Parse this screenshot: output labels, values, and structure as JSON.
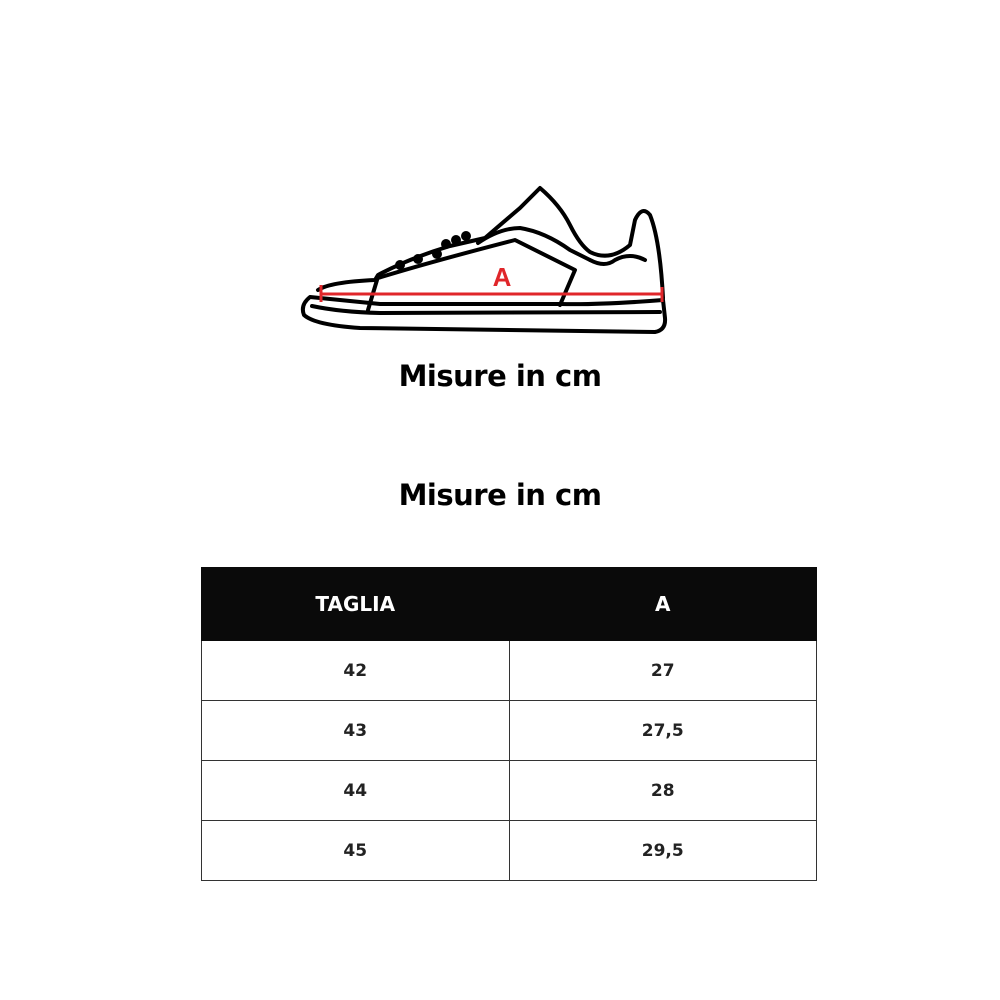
{
  "illustration": {
    "label": "A",
    "measure_color": "#e0262a"
  },
  "titles": {
    "top": "Misure in cm",
    "table": "Misure in cm"
  },
  "table": {
    "headers": [
      "TAGLIA",
      "A"
    ],
    "rows": [
      [
        "42",
        "27"
      ],
      [
        "43",
        "27,5"
      ],
      [
        "44",
        "28"
      ],
      [
        "45",
        "29,5"
      ]
    ]
  }
}
